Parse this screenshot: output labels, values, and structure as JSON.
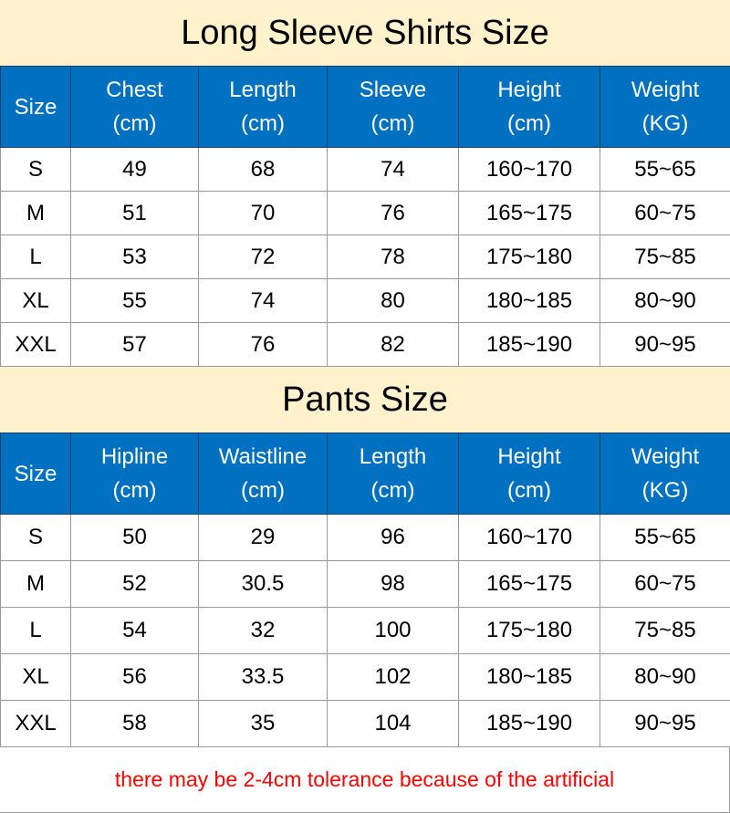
{
  "shirts": {
    "title": "Long Sleeve Shirts Size",
    "headers": [
      [
        "Size",
        ""
      ],
      [
        "Chest",
        "(cm)"
      ],
      [
        "Length",
        "(cm)"
      ],
      [
        "Sleeve",
        "(cm)"
      ],
      [
        "Height",
        "(cm)"
      ],
      [
        "Weight",
        "(KG)"
      ]
    ],
    "rows": [
      [
        "S",
        "49",
        "68",
        "74",
        "160~170",
        "55~65"
      ],
      [
        "M",
        "51",
        "70",
        "76",
        "165~175",
        "60~75"
      ],
      [
        "L",
        "53",
        "72",
        "78",
        "175~180",
        "75~85"
      ],
      [
        "XL",
        "55",
        "74",
        "80",
        "180~185",
        "80~90"
      ],
      [
        "XXL",
        "57",
        "76",
        "82",
        "185~190",
        "90~95"
      ]
    ]
  },
  "pants": {
    "title": "Pants Size",
    "headers": [
      [
        "Size",
        ""
      ],
      [
        "Hipline",
        "(cm)"
      ],
      [
        "Waistline",
        "(cm)"
      ],
      [
        "Length",
        "(cm)"
      ],
      [
        "Height",
        "(cm)"
      ],
      [
        "Weight",
        "(KG)"
      ]
    ],
    "rows": [
      [
        "S",
        "50",
        "29",
        "96",
        "160~170",
        "55~65"
      ],
      [
        "M",
        "52",
        "30.5",
        "98",
        "165~175",
        "60~75"
      ],
      [
        "L",
        "54",
        "32",
        "100",
        "175~180",
        "75~85"
      ],
      [
        "XL",
        "56",
        "33.5",
        "102",
        "180~185",
        "80~90"
      ],
      [
        "XXL",
        "58",
        "35",
        "104",
        "185~190",
        "90~95"
      ]
    ]
  },
  "footer_note": "there may be 2-4cm tolerance because of the artificial",
  "colors": {
    "title_bg": "#fff2cc",
    "header_bg": "#0070c0",
    "note": "#ff0000"
  }
}
